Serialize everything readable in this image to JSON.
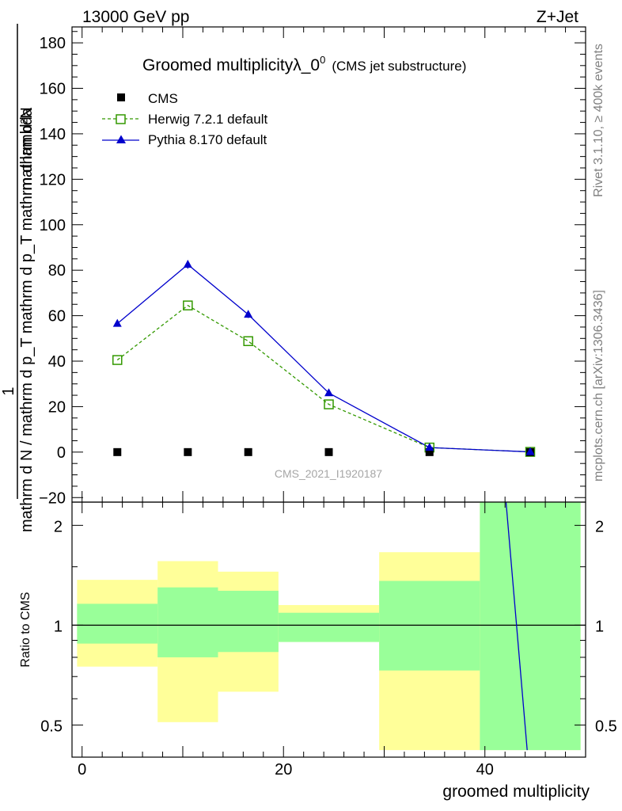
{
  "header": {
    "left": "13000 GeV pp",
    "right": "Z+Jet"
  },
  "side": {
    "rivet": "Rivet 3.1.10, ≥ 400k events",
    "mcplots": "mcplots.cern.ch [arXiv:1306.3436]"
  },
  "colors": {
    "cms": "#000000",
    "herwig": "#339900",
    "pythia": "#0000cc",
    "band_green": "#99ff99",
    "band_yellow": "#ffff99"
  },
  "chart_data": [
    {
      "type": "line",
      "title": "Groomed multiplicityλ_0",
      "title_sup": "0",
      "subtitle": "(CMS jet substructure)",
      "analysis_label": "CMS_2021_I1920187",
      "ylabel": {
        "numerator": "mathrm d²N",
        "denominator": "mathrm d N / mathrm d p_T mathrm d p_T mathrm d lambda",
        "prefix": "1"
      },
      "xlim": [
        -1,
        50
      ],
      "ylim": [
        -22,
        187
      ],
      "yticks": [
        -20,
        0,
        20,
        40,
        60,
        80,
        100,
        120,
        140,
        160,
        180
      ],
      "ytick_labels": [
        "−20",
        "0",
        "20",
        "40",
        "60",
        "80",
        "100",
        "120",
        "140",
        "160",
        "180"
      ],
      "legend": {
        "position": "top-left",
        "entries": [
          "CMS",
          "Herwig 7.2.1 default",
          "Pythia 8.170 default"
        ]
      },
      "series": [
        {
          "name": "CMS",
          "style": "square-marker",
          "x": [
            3.5,
            10.5,
            16.5,
            24.5,
            34.5,
            44.5
          ],
          "y": [
            0,
            0,
            0,
            0,
            0,
            0
          ]
        },
        {
          "name": "Herwig 7.2.1 default",
          "style": "dashed-open-square",
          "x": [
            3.5,
            10.5,
            16.5,
            24.5,
            34.5,
            44.5
          ],
          "y": [
            40.5,
            64.5,
            48.8,
            21.0,
            2.0,
            0.1
          ]
        },
        {
          "name": "Pythia 8.170 default",
          "style": "solid-triangle",
          "x": [
            3.5,
            10.5,
            16.5,
            24.5,
            34.5,
            44.5
          ],
          "y": [
            56.5,
            82.5,
            60.5,
            26.0,
            2.0,
            0.1
          ],
          "err": [
            0.8,
            1.8,
            1.5,
            0.8,
            0.3,
            0.1
          ]
        }
      ]
    },
    {
      "type": "area",
      "ylabel": "Ratio to CMS",
      "xlabel": "groomed multiplicity",
      "yscale": "log",
      "xlim": [
        -1,
        50
      ],
      "ylim": [
        0.4,
        2.35
      ],
      "xticks": [
        0,
        20,
        40
      ],
      "xtick_labels": [
        "0",
        "20",
        "40"
      ],
      "yticks": [
        0.5,
        1,
        2
      ],
      "ytick_labels": [
        "0.5",
        "1",
        "2"
      ],
      "reference_line": 1,
      "bins": [
        {
          "lo": -0.5,
          "hi": 7.5,
          "green": [
            0.88,
            1.16
          ],
          "yellow": [
            0.75,
            1.37
          ]
        },
        {
          "lo": 7.5,
          "hi": 13.5,
          "green": [
            0.8,
            1.3
          ],
          "yellow": [
            0.51,
            1.56
          ]
        },
        {
          "lo": 13.5,
          "hi": 19.5,
          "green": [
            0.83,
            1.27
          ],
          "yellow": [
            0.63,
            1.45
          ]
        },
        {
          "lo": 19.5,
          "hi": 29.5,
          "green": [
            0.89,
            1.09
          ],
          "yellow": [
            0.89,
            1.15
          ]
        },
        {
          "lo": 29.5,
          "hi": 39.5,
          "green": [
            0.73,
            1.36
          ],
          "yellow": [
            0.42,
            1.66
          ]
        },
        {
          "lo": 39.5,
          "hi": 49.5,
          "green": [
            0.42,
            2.35
          ],
          "yellow": [
            0.42,
            2.35
          ]
        }
      ],
      "series": [
        {
          "name": "Pythia 8.170 default ratio",
          "x": [
            42.1,
            44.2
          ],
          "y": [
            2.35,
            0.42
          ]
        }
      ]
    }
  ]
}
